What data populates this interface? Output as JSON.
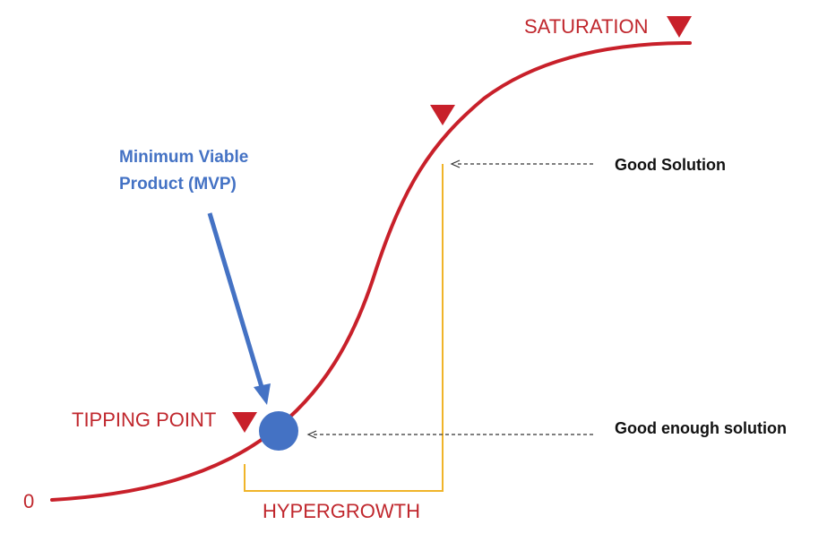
{
  "labels": {
    "zero": "0",
    "saturation": "SATURATION",
    "tipping_point": "TIPPING POINT",
    "hypergrowth": "HYPERGROWTH",
    "good_solution": "Good Solution",
    "good_enough_solution": "Good enough solution",
    "mvp_line1": "Minimum Viable",
    "mvp_line2": "Product (MVP)"
  },
  "colors": {
    "curve": "#c8202a",
    "marker": "#c8202a",
    "bracket": "#f0b429",
    "mvp": "#4472c4",
    "text_red": "#c0272d",
    "text_black": "#111111"
  },
  "icons": [
    "down-triangle-icon",
    "mvp-dot-icon",
    "arrow-icon"
  ]
}
